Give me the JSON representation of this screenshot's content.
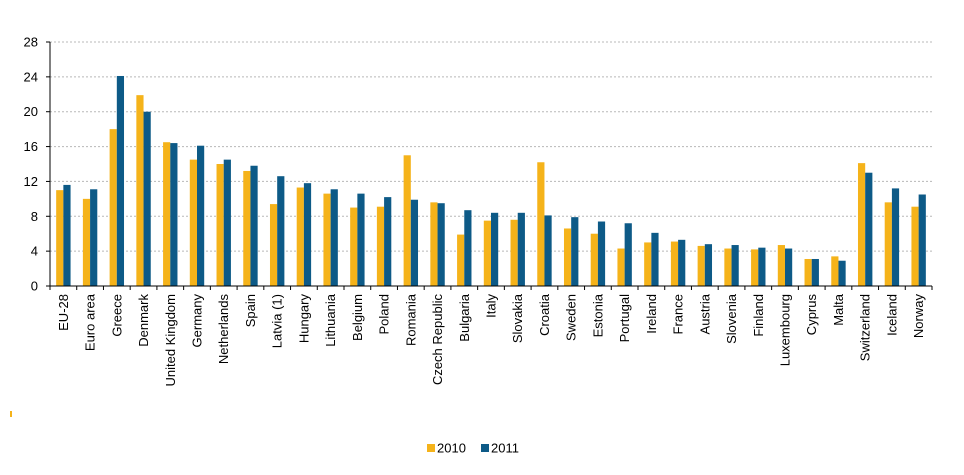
{
  "chart_data": {
    "type": "bar",
    "title": "",
    "xlabel": "",
    "ylabel": "",
    "ylim": [
      0,
      28
    ],
    "yticks": [
      0,
      4,
      8,
      12,
      16,
      20,
      24,
      28
    ],
    "grid": true,
    "legend_position": "bottom-center",
    "categories": [
      "EU-28",
      "Euro area",
      "Greece",
      "Denmark",
      "United Kingdom",
      "Germany",
      "Netherlands",
      "Spain",
      "Latvia (1)",
      "Hungary",
      "Lithuania",
      "Belgium",
      "Poland",
      "Romania",
      "Czech Republic",
      "Bulgaria",
      "Italy",
      "Slovakia",
      "Croatia",
      "Sweden",
      "Estonia",
      "Portugal",
      "Ireland",
      "France",
      "Austria",
      "Slovenia",
      "Finland",
      "Luxembourg",
      "Cyprus",
      "Malta",
      "Switzerland",
      "Iceland",
      "Norway"
    ],
    "series": [
      {
        "name": "2010",
        "color": "#f5b31a",
        "values": [
          11.0,
          10.0,
          18.0,
          21.9,
          16.5,
          14.5,
          14.0,
          13.2,
          9.4,
          11.3,
          10.6,
          9.0,
          9.1,
          15.0,
          9.6,
          5.9,
          7.5,
          7.6,
          14.2,
          6.6,
          6.0,
          4.3,
          5.0,
          5.1,
          4.6,
          4.3,
          4.2,
          4.7,
          3.1,
          3.4,
          14.1,
          9.6,
          9.1
        ]
      },
      {
        "name": "2011",
        "color": "#0d5a87",
        "values": [
          11.6,
          11.1,
          24.1,
          20.0,
          16.4,
          16.1,
          14.5,
          13.8,
          12.6,
          11.8,
          11.1,
          10.6,
          10.2,
          9.9,
          9.5,
          8.7,
          8.4,
          8.4,
          8.1,
          7.9,
          7.4,
          7.2,
          6.1,
          5.3,
          4.8,
          4.7,
          4.4,
          4.3,
          3.1,
          2.9,
          13.0,
          11.2,
          10.5
        ]
      }
    ]
  }
}
